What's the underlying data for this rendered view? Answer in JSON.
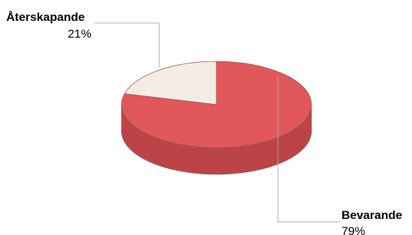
{
  "chart_data": {
    "type": "pie",
    "style": "3d",
    "title": "",
    "slices": [
      {
        "label": "Återskapande",
        "value": 21,
        "value_label": "21%",
        "color": "#f4ebe4"
      },
      {
        "label": "Bevarande",
        "value": 79,
        "value_label": "79%",
        "color": "#e2575a"
      }
    ],
    "side_colors": [
      "#d9d0c7",
      "#bd4446"
    ],
    "edge_color": "#8a5555"
  }
}
